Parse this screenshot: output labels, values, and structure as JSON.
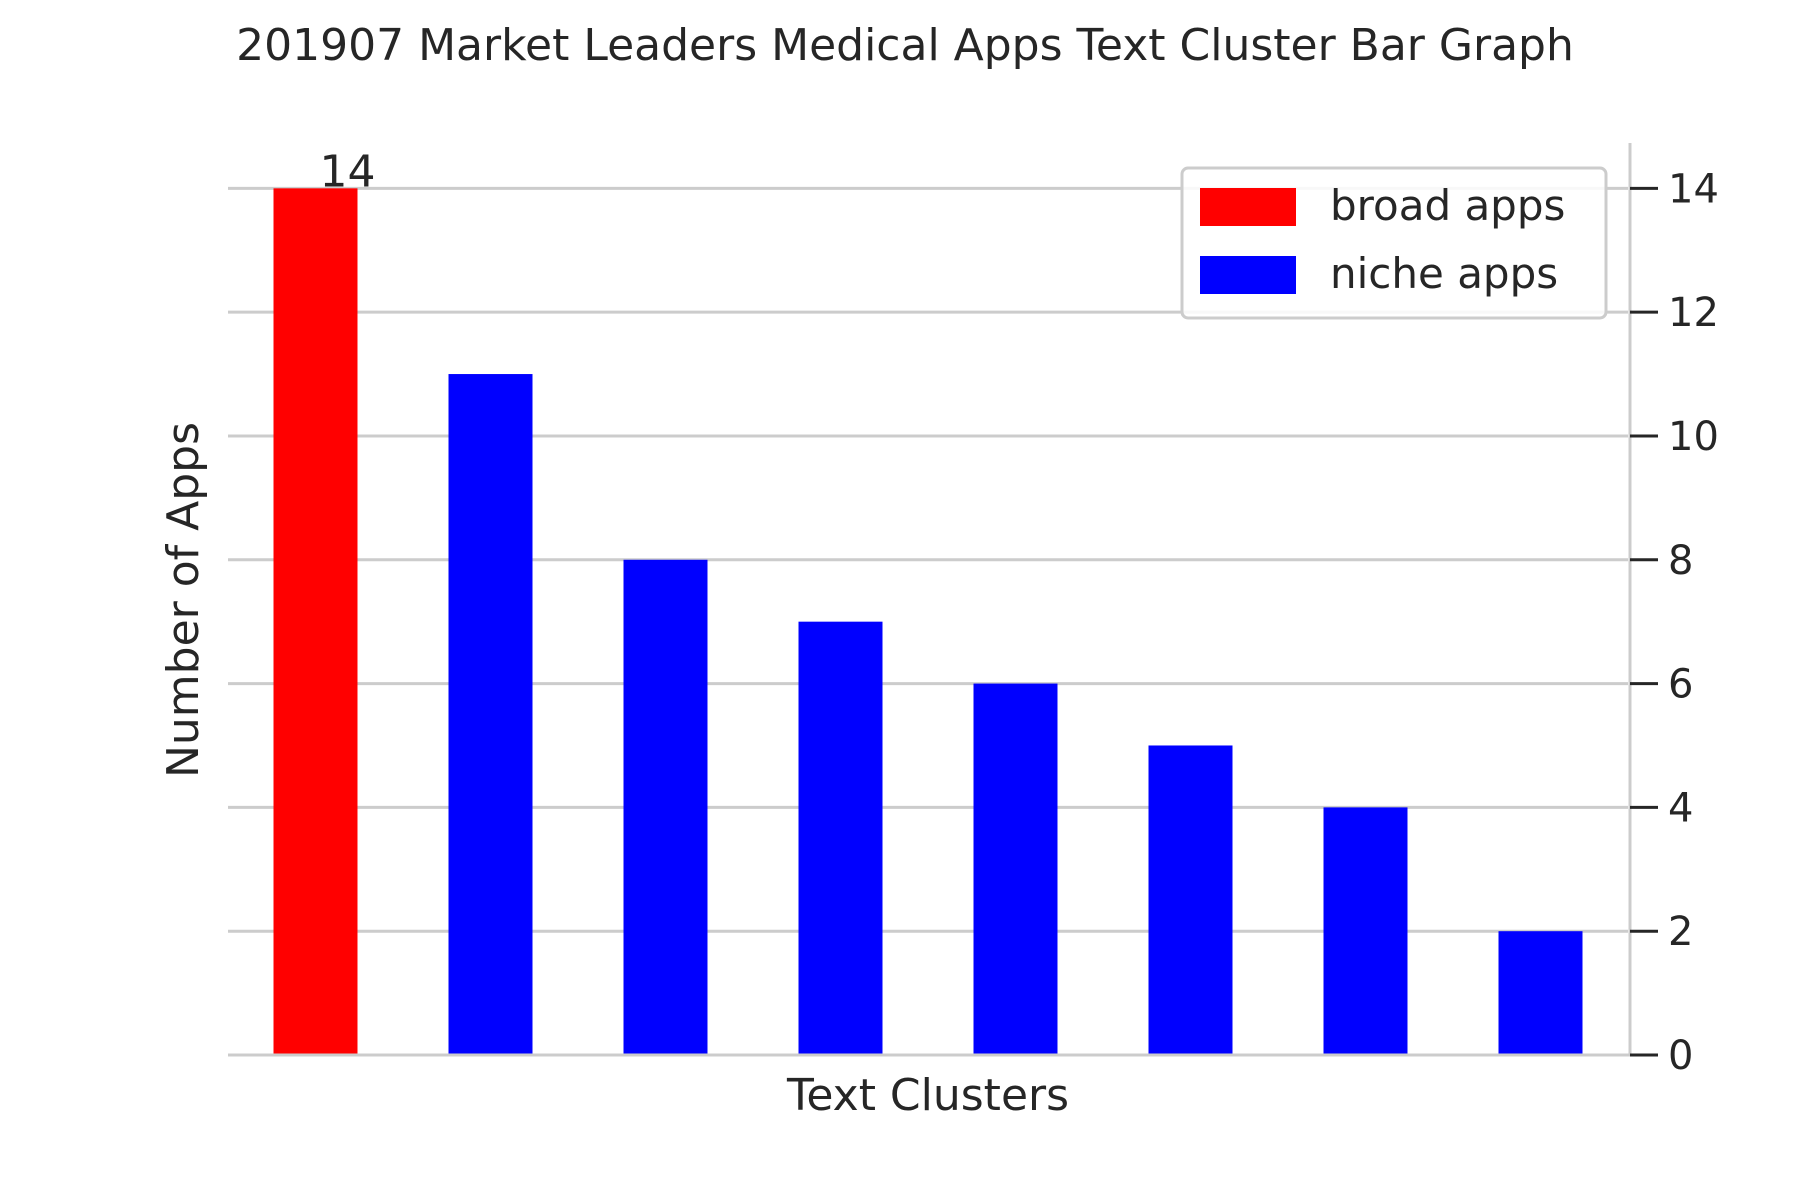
{
  "chart_data": {
    "type": "bar",
    "title": "201907 Market Leaders Medical Apps Text Cluster Bar Graph",
    "xlabel": "Text Clusters",
    "ylabel": "Number of Apps",
    "categories": [
      "",
      "",
      "",
      "",
      "",
      "",
      "",
      ""
    ],
    "series": [
      {
        "name": "broad apps",
        "color": "#ff0000",
        "values": [
          14,
          null,
          null,
          null,
          null,
          null,
          null,
          null
        ]
      },
      {
        "name": "niche apps",
        "color": "#0000ff",
        "values": [
          null,
          11,
          8,
          7,
          6,
          5,
          4,
          2
        ]
      }
    ],
    "data_labels": [
      {
        "category_index": 0,
        "text": "14"
      }
    ],
    "ylim": [
      0,
      14.7
    ],
    "yticks": [
      0,
      2,
      4,
      6,
      8,
      10,
      12,
      14
    ],
    "y_axis_side": "right",
    "grid": true,
    "legend_position": "top-right",
    "colors": {
      "grid": "#cccccc",
      "axis": "#cccccc",
      "text": "#262626"
    }
  }
}
